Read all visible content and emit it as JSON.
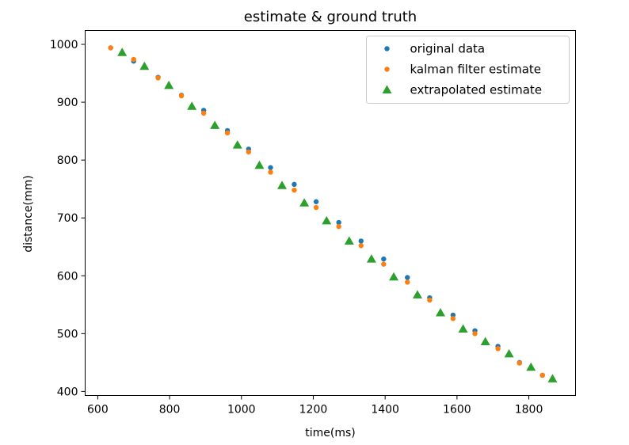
{
  "chart_data": {
    "type": "scatter",
    "title": "estimate & ground truth",
    "xlabel": "time(ms)",
    "ylabel": "distance(mm)",
    "xlim": [
      565,
      1930
    ],
    "ylim": [
      393,
      1024
    ],
    "xticks": [
      600,
      800,
      1000,
      1200,
      1400,
      1600,
      1800
    ],
    "yticks": [
      400,
      500,
      600,
      700,
      800,
      900,
      1000
    ],
    "grid": false,
    "legend_position": "top-right",
    "series": [
      {
        "name": "original data",
        "marker": "circle",
        "color": "#1f77b4",
        "x": [
          636,
          700,
          768,
          833,
          895,
          961,
          1020,
          1081,
          1147,
          1208,
          1271,
          1333,
          1396,
          1462,
          1524,
          1589,
          1650,
          1714,
          1774,
          1838
        ],
        "y": [
          994,
          971,
          943,
          912,
          886,
          851,
          819,
          787,
          758,
          728,
          692,
          660,
          629,
          597,
          562,
          532,
          505,
          478,
          450,
          428
        ]
      },
      {
        "name": "kalman filter estimate",
        "marker": "circle",
        "color": "#ff7f0e",
        "x": [
          636,
          700,
          768,
          833,
          895,
          961,
          1020,
          1081,
          1147,
          1208,
          1271,
          1333,
          1396,
          1462,
          1524,
          1589,
          1650,
          1714,
          1774,
          1838
        ],
        "y": [
          994,
          974,
          942,
          911,
          881,
          847,
          814,
          779,
          748,
          718,
          685,
          652,
          620,
          589,
          558,
          526,
          500,
          474,
          449,
          428
        ]
      },
      {
        "name": "extrapolated estimate",
        "marker": "triangle",
        "color": "#2ca02c",
        "x": [
          668,
          730,
          798,
          862,
          926,
          989,
          1050,
          1113,
          1175,
          1237,
          1300,
          1362,
          1424,
          1490,
          1554,
          1617,
          1679,
          1745,
          1806,
          1866
        ],
        "y": [
          986,
          962,
          929,
          893,
          860,
          826,
          791,
          756,
          726,
          695,
          660,
          629,
          598,
          567,
          536,
          508,
          486,
          465,
          442,
          422
        ]
      }
    ]
  }
}
